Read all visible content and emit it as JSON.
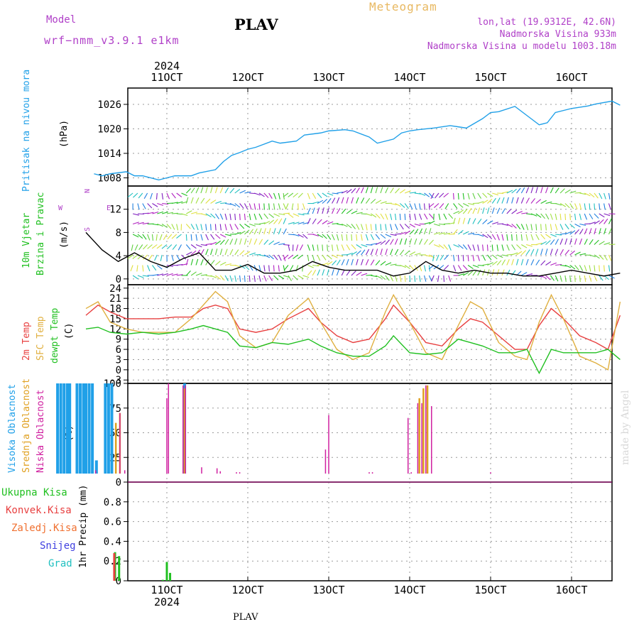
{
  "header": {
    "model_label": "Model",
    "model_name": "wrf−nmm_v3.9.1  e1km",
    "station": "PLAV",
    "title": "Meteogram",
    "lonlat": "lon,lat (19.9312E, 42.6N)",
    "elevation": "Nadmorska Visina 933m",
    "model_elevation": "Nadmorska Visina u modelu 1003.18m"
  },
  "footer": {
    "station": "PLAV",
    "credit": "made by Angel"
  },
  "time_axis": {
    "year": "2024",
    "labels": [
      "11OCT",
      "12OCT",
      "13OCT",
      "14OCT",
      "15OCT",
      "16OCT"
    ]
  },
  "panel_labels": {
    "pressure": {
      "name": "Pritisak na nivou mora",
      "unit": "(hPa)"
    },
    "wind": {
      "name1": "10m Vjetar",
      "name2": "Brzina i Pravac",
      "unit": "(m/s)",
      "compass_n": "N",
      "compass_w": "W",
      "compass_e": "E",
      "compass_s": "S"
    },
    "temp": {
      "t2m": "2m Temp",
      "sfc": "SFC Temp",
      "dew": "dewpt Temp",
      "unit": "(C)"
    },
    "cloud": {
      "high": "Visoka Oblacnost",
      "mid": "Srednja Oblacnost",
      "low": "Niska Oblacnost",
      "unit": "(%)"
    },
    "precip": {
      "total": "Ukupna Kisa",
      "conv": "Konvek.Kisa",
      "frz": "Zaledj.Kisa",
      "snow": "Snijeg",
      "hail": "Grad",
      "axis": "1hr Precip (mm)"
    }
  },
  "colors": {
    "pressure": "#20a0e8",
    "t2m": "#e84040",
    "sfc": "#e0b040",
    "dew": "#20c020",
    "high": "#20a0e8",
    "mid": "#e0a020",
    "low": "#d020a0",
    "precip_total": "#20c020",
    "precip_conv": "#e84040",
    "precip_frz": "#f07030",
    "snow": "#4040e0",
    "hail": "#20c0c0",
    "purple": "#b040c8"
  },
  "chart_data": [
    {
      "type": "line",
      "id": "pressure",
      "x_unit": "days since start of 10OCT 2024",
      "ylim": [
        1006,
        1030
      ],
      "yticks": [
        1008,
        1014,
        1020,
        1026
      ],
      "series": [
        {
          "name": "Pritisak na nivou mora",
          "x": [
            0.1,
            0.2,
            0.3,
            0.5,
            0.6,
            0.7,
            0.9,
            1.0,
            1.1,
            1.3,
            1.4,
            1.6,
            1.7,
            1.8,
            1.9,
            2.0,
            2.1,
            2.3,
            2.4,
            2.6,
            2.7,
            2.9,
            3.0,
            3.2,
            3.3,
            3.5,
            3.6,
            3.8,
            3.9,
            4.0,
            4.1,
            4.3,
            4.5,
            4.6,
            4.7,
            4.9,
            5.0,
            5.1,
            5.3,
            5.5,
            5.6,
            5.7,
            5.8,
            6.0,
            6.2,
            6.3,
            6.5,
            6.6
          ],
          "y": [
            1009,
            1008.5,
            1009,
            1009.5,
            1008.5,
            1008.5,
            1007.5,
            1008,
            1008.5,
            1008.5,
            1009.2,
            1010,
            1012,
            1013.5,
            1014.2,
            1015,
            1015.5,
            1017,
            1016.5,
            1017,
            1018.5,
            1019,
            1019.5,
            1019.8,
            1019.5,
            1018,
            1016.5,
            1017.5,
            1019,
            1019.5,
            1019.8,
            1020.2,
            1020.8,
            1020.5,
            1020.2,
            1022.5,
            1024,
            1024.2,
            1025.5,
            1022.5,
            1021,
            1021.5,
            1024,
            1025,
            1025.6,
            1026.1,
            1026.8,
            1025.8
          ]
        }
      ]
    },
    {
      "type": "line",
      "id": "wind_speed",
      "x_unit": "days since start of 10OCT 2024",
      "ylim": [
        -1,
        16
      ],
      "yticks": [
        0,
        4,
        8,
        12
      ],
      "series": [
        {
          "name": "10m Vjetar",
          "x": [
            0.0,
            0.2,
            0.4,
            0.6,
            0.8,
            1.0,
            1.2,
            1.4,
            1.6,
            1.8,
            2.0,
            2.2,
            2.4,
            2.6,
            2.8,
            3.0,
            3.2,
            3.4,
            3.6,
            3.8,
            4.0,
            4.2,
            4.4,
            4.6,
            4.8,
            5.0,
            5.2,
            5.4,
            5.6,
            5.8,
            6.0,
            6.2,
            6.4,
            6.6
          ],
          "y": [
            8,
            5,
            3,
            4.5,
            3,
            2,
            3.5,
            4.5,
            1.5,
            1.5,
            2.5,
            1,
            1,
            1.5,
            3,
            2,
            1.5,
            1.5,
            1.5,
            0.5,
            1,
            3,
            1.5,
            1,
            1.5,
            1,
            1,
            0.5,
            0.5,
            1,
            1.5,
            1,
            0.5,
            1
          ]
        }
      ]
    },
    {
      "type": "line",
      "id": "temperature",
      "x_unit": "days since start of 10OCT 2024",
      "ylim": [
        -4,
        25
      ],
      "yticks": [
        -3,
        0,
        3,
        6,
        9,
        12,
        15,
        18,
        21,
        24
      ],
      "series": [
        {
          "name": "2m Temp",
          "x": [
            0.0,
            0.15,
            0.3,
            0.5,
            0.7,
            0.9,
            1.1,
            1.3,
            1.45,
            1.6,
            1.75,
            1.9,
            2.1,
            2.3,
            2.5,
            2.75,
            2.9,
            3.1,
            3.3,
            3.5,
            3.7,
            3.8,
            4.0,
            4.2,
            4.4,
            4.6,
            4.75,
            4.9,
            5.1,
            5.3,
            5.45,
            5.6,
            5.75,
            5.9,
            6.1,
            6.3,
            6.45,
            6.6
          ],
          "y": [
            16,
            19,
            17,
            15,
            15,
            15,
            15.5,
            15.5,
            18,
            19,
            18,
            12,
            11,
            12,
            15,
            18,
            14,
            10,
            8,
            9,
            15,
            19,
            14,
            8,
            7,
            12,
            15,
            14,
            10,
            6,
            6,
            13,
            18,
            15,
            10,
            8,
            6,
            16
          ]
        },
        {
          "name": "SFC Temp",
          "x": [
            0.0,
            0.15,
            0.3,
            0.5,
            0.7,
            0.9,
            1.1,
            1.3,
            1.45,
            1.6,
            1.75,
            1.9,
            2.1,
            2.3,
            2.5,
            2.75,
            2.9,
            3.1,
            3.3,
            3.5,
            3.7,
            3.8,
            4.0,
            4.2,
            4.4,
            4.6,
            4.75,
            4.9,
            5.1,
            5.3,
            5.45,
            5.6,
            5.75,
            5.9,
            6.1,
            6.3,
            6.45,
            6.6
          ],
          "y": [
            18,
            20,
            14,
            12,
            11,
            11,
            11,
            15,
            19,
            23,
            20,
            10,
            6.5,
            8,
            16,
            21,
            14,
            6,
            3,
            5,
            17,
            22,
            14,
            5,
            3,
            13,
            20,
            18,
            8,
            4,
            3,
            14,
            22,
            15,
            4,
            2,
            0,
            20
          ]
        },
        {
          "name": "dewpt Temp",
          "x": [
            0.0,
            0.15,
            0.3,
            0.5,
            0.7,
            0.9,
            1.1,
            1.3,
            1.45,
            1.6,
            1.75,
            1.9,
            2.1,
            2.3,
            2.5,
            2.75,
            2.9,
            3.1,
            3.3,
            3.5,
            3.7,
            3.8,
            4.0,
            4.2,
            4.4,
            4.6,
            4.75,
            4.9,
            5.1,
            5.3,
            5.45,
            5.6,
            5.75,
            5.9,
            6.1,
            6.3,
            6.45,
            6.6
          ],
          "y": [
            12,
            12.5,
            11,
            10.5,
            11,
            10.5,
            11,
            12,
            13,
            12,
            11,
            7,
            6.5,
            8,
            7.5,
            9,
            7,
            5,
            4,
            4,
            7,
            10,
            5,
            4.5,
            5,
            9,
            8,
            7,
            5,
            5,
            6,
            -1,
            6,
            5,
            5,
            5,
            6,
            3
          ]
        }
      ]
    },
    {
      "type": "bar",
      "id": "cloud_cover",
      "x_unit": "days since start of 10OCT 2024",
      "ylim": [
        0,
        100
      ],
      "yticks": [
        0,
        25,
        50,
        75,
        100
      ],
      "series": [
        {
          "name": "Visoka Oblacnost",
          "x": [
            -0.35,
            -0.31,
            -0.27,
            -0.23,
            -0.2,
            -0.11,
            -0.07,
            -0.03,
            0.0,
            0.04,
            0.08,
            0.13,
            0.24,
            0.28,
            0.32,
            1.22
          ],
          "y": [
            100,
            100,
            100,
            100,
            100,
            100,
            100,
            100,
            100,
            100,
            100,
            22,
            100,
            100,
            100,
            100
          ]
        },
        {
          "name": "Srednja Oblacnost",
          "x": [
            0.37,
            0.42,
            1.22,
            4.12,
            4.17,
            4.22
          ],
          "y": [
            60,
            70,
            95,
            85,
            95,
            98
          ]
        },
        {
          "name": "Niska Oblacnost",
          "x": [
            0.12,
            0.2,
            0.32,
            0.42,
            0.48,
            1.0,
            1.02,
            1.2,
            1.23,
            1.43,
            1.62,
            1.66,
            1.86,
            1.9,
            2.22,
            2.96,
            3.0,
            3.2,
            3.5,
            3.54,
            3.98,
            4.02,
            4.1,
            4.15,
            4.2,
            4.27,
            5.0,
            5.08
          ],
          "y": [
            12,
            5,
            6,
            70,
            12,
            85,
            100,
            98,
            98,
            15,
            14,
            11,
            10,
            10,
            3,
            33,
            68,
            5,
            10,
            10,
            65,
            10,
            80,
            80,
            98,
            77,
            10,
            3
          ]
        }
      ]
    },
    {
      "type": "bar",
      "id": "precipitation",
      "x_unit": "days since start of 10OCT 2024",
      "ylim": [
        0,
        1.0
      ],
      "yticks": [
        0,
        0.2,
        0.4,
        0.6,
        0.8
      ],
      "series": [
        {
          "name": "Ukupna Kisa",
          "x": [
            0.36,
            0.41,
            0.95,
            1.0,
            1.04
          ],
          "y": [
            0.29,
            0.25,
            0.01,
            0.19,
            0.08
          ]
        },
        {
          "name": "Konvek.Kisa",
          "x": [
            0.35
          ],
          "y": [
            0.28
          ]
        },
        {
          "name": "Zaledj.Kisa",
          "x": [],
          "y": []
        },
        {
          "name": "Snijeg",
          "x": [],
          "y": []
        },
        {
          "name": "Grad",
          "x": [],
          "y": []
        }
      ]
    }
  ]
}
